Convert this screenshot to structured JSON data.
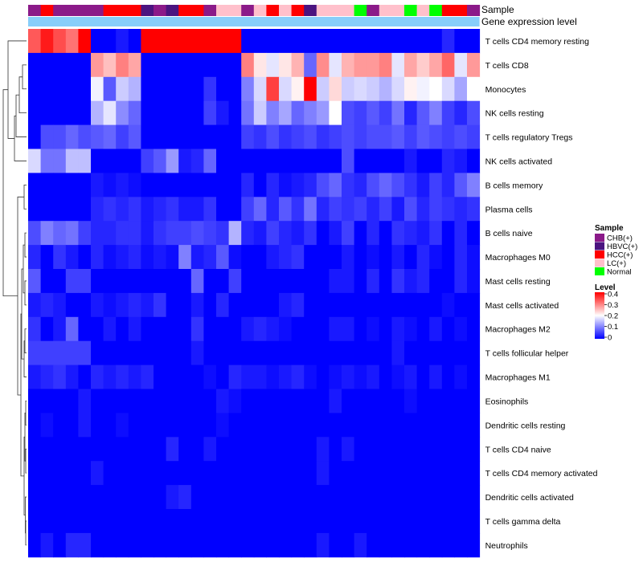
{
  "chart_data": {
    "type": "heatmap",
    "title": "",
    "annotation_titles": {
      "sample": "Sample",
      "gene": "Gene expression level"
    },
    "sample_groups": [
      "CHB(+)",
      "HBVC(+)",
      "HCC(+)",
      "LC(+)",
      "Normal"
    ],
    "sample_colors": {
      "CHB(+)": "#8B1A89",
      "HBVC(+)": "#4B1480",
      "HCC(+)": "#FF0000",
      "LC(+)": "#FFC0CB",
      "Normal": "#00FF00"
    },
    "gene_level_color": "#87CEFA",
    "columns": [
      "CHB(+)",
      "HCC(+)",
      "CHB(+)",
      "CHB(+)",
      "CHB(+)",
      "CHB(+)",
      "HCC(+)",
      "HCC(+)",
      "HCC(+)",
      "HBVC(+)",
      "CHB(+)",
      "HBVC(+)",
      "HCC(+)",
      "HCC(+)",
      "CHB(+)",
      "LC(+)",
      "LC(+)",
      "CHB(+)",
      "LC(+)",
      "HCC(+)",
      "LC(+)",
      "HCC(+)",
      "HBVC(+)",
      "LC(+)",
      "LC(+)",
      "LC(+)",
      "Normal",
      "CHB(+)",
      "LC(+)",
      "LC(+)",
      "Normal",
      "LC(+)",
      "Normal",
      "HCC(+)",
      "HCC(+)",
      "CHB(+)"
    ],
    "rows": [
      "T cells CD4 memory resting",
      "T cells CD8",
      "Monocytes",
      "NK cells resting",
      "T cells regulatory  Tregs",
      "NK cells activated",
      "B cells memory",
      "Plasma cells",
      "B cells naive",
      "Macrophages M0",
      "Mast cells resting",
      "Mast cells activated",
      "Macrophages M2",
      "T cells follicular helper",
      "Macrophages M1",
      "Eosinophils",
      "Dendritic cells resting",
      "T cells CD4 naive",
      "T cells CD4 memory activated",
      "Dendritic cells activated",
      "T cells gamma delta",
      "Neutrophils"
    ],
    "values": [
      [
        0.33,
        0.38,
        0.34,
        0.31,
        0.4,
        0,
        0,
        0.02,
        0,
        0.4,
        0.4,
        0.4,
        0.4,
        0.4,
        0.4,
        0.4,
        0.4,
        0,
        0,
        0,
        0,
        0,
        0,
        0,
        0,
        0,
        0,
        0,
        0,
        0,
        0,
        0,
        0,
        0.03,
        0,
        0
      ],
      [
        0,
        0,
        0,
        0,
        0,
        0.28,
        0.25,
        0.3,
        0.27,
        0,
        0,
        0,
        0,
        0,
        0,
        0,
        0,
        0.3,
        0.22,
        0.18,
        0.22,
        0.26,
        0.08,
        0.29,
        0.18,
        0.26,
        0.28,
        0.28,
        0.3,
        0.18,
        0.27,
        0.24,
        0.27,
        0.32,
        0.18,
        0.28
      ],
      [
        0,
        0,
        0,
        0,
        0,
        0.19,
        0.07,
        0.16,
        0.14,
        0,
        0,
        0,
        0,
        0,
        0.04,
        0,
        0,
        0.1,
        0.17,
        0.35,
        0.17,
        0.21,
        0.4,
        0.16,
        0.23,
        0.16,
        0.17,
        0.16,
        0.14,
        0.17,
        0.21,
        0.19,
        0.2,
        0.17,
        0.13,
        0.2
      ],
      [
        0,
        0,
        0,
        0,
        0,
        0.14,
        0.18,
        0.11,
        0.08,
        0,
        0,
        0,
        0,
        0,
        0.05,
        0.02,
        0,
        0.09,
        0.16,
        0.1,
        0.13,
        0.08,
        0.1,
        0.12,
        0.2,
        0.06,
        0.05,
        0.07,
        0.05,
        0.09,
        0.03,
        0.07,
        0.1,
        0.05,
        0.03,
        0.06
      ],
      [
        0,
        0.06,
        0.06,
        0.08,
        0.06,
        0.07,
        0.08,
        0.05,
        0.07,
        0,
        0,
        0,
        0,
        0,
        0,
        0,
        0,
        0.05,
        0.04,
        0.06,
        0.04,
        0.05,
        0.06,
        0.04,
        0.05,
        0.06,
        0.05,
        0.06,
        0.06,
        0.07,
        0.05,
        0.07,
        0.06,
        0.05,
        0.06,
        0.05
      ],
      [
        0.17,
        0.09,
        0.09,
        0.15,
        0.15,
        0,
        0,
        0,
        0,
        0.05,
        0.07,
        0.12,
        0.02,
        0.03,
        0.08,
        0,
        0,
        0,
        0,
        0,
        0,
        0,
        0,
        0,
        0,
        0.06,
        0,
        0,
        0,
        0,
        0.02,
        0,
        0,
        0.03,
        0.02,
        0
      ],
      [
        0,
        0,
        0,
        0,
        0,
        0.02,
        0.01,
        0.02,
        0.01,
        0,
        0,
        0,
        0,
        0,
        0,
        0,
        0,
        0.03,
        0,
        0.03,
        0.01,
        0.02,
        0.03,
        0.06,
        0.08,
        0.04,
        0.03,
        0.06,
        0.08,
        0.06,
        0.04,
        0.02,
        0.05,
        0.03,
        0.07,
        0.1
      ],
      [
        0,
        0,
        0,
        0,
        0,
        0.03,
        0.04,
        0.03,
        0.04,
        0.02,
        0.03,
        0.04,
        0.02,
        0.02,
        0.04,
        0,
        0,
        0.05,
        0.08,
        0.03,
        0.07,
        0.04,
        0.09,
        0.03,
        0.05,
        0.04,
        0.05,
        0.03,
        0.05,
        0.02,
        0.06,
        0.03,
        0.05,
        0.04,
        0.03,
        0.04
      ],
      [
        0.06,
        0.1,
        0.08,
        0.09,
        0.05,
        0.03,
        0.03,
        0.04,
        0.04,
        0.02,
        0.04,
        0.05,
        0.05,
        0.06,
        0.05,
        0.04,
        0.14,
        0.03,
        0.02,
        0.05,
        0.03,
        0.02,
        0.04,
        0,
        0.02,
        0.05,
        0,
        0.03,
        0,
        0.04,
        0.03,
        0.02,
        0.04,
        0,
        0.03,
        0
      ],
      [
        0.03,
        0,
        0.04,
        0.02,
        0,
        0.03,
        0.01,
        0.02,
        0.03,
        0.01,
        0.02,
        0.01,
        0.1,
        0.02,
        0.03,
        0.07,
        0.01,
        0,
        0,
        0.02,
        0.03,
        0.04,
        0,
        0,
        0,
        0.02,
        0,
        0.01,
        0,
        0.02,
        0,
        0.03,
        0.01,
        0,
        0.03,
        0.01
      ],
      [
        0.07,
        0,
        0,
        0.05,
        0.05,
        0,
        0,
        0,
        0,
        0,
        0,
        0,
        0,
        0.08,
        0,
        0,
        0.05,
        0,
        0,
        0,
        0,
        0,
        0,
        0,
        0.02,
        0.02,
        0,
        0.03,
        0,
        0.04,
        0.02,
        0.03,
        0,
        0,
        0.03,
        0.01
      ],
      [
        0.02,
        0.03,
        0.02,
        0,
        0,
        0.02,
        0.01,
        0.02,
        0.03,
        0.02,
        0.04,
        0,
        0,
        0.02,
        0,
        0.03,
        0,
        0,
        0,
        0,
        0.02,
        0.03,
        0,
        0,
        0,
        0,
        0,
        0,
        0,
        0,
        0,
        0,
        0,
        0.01,
        0,
        0
      ],
      [
        0.04,
        0,
        0.02,
        0.08,
        0,
        0,
        0.02,
        0,
        0.02,
        0,
        0,
        0,
        0,
        0.04,
        0,
        0,
        0,
        0.02,
        0.03,
        0.02,
        0.01,
        0,
        0,
        0,
        0.02,
        0.02,
        0,
        0.01,
        0,
        0.02,
        0.01,
        0,
        0.02,
        0,
        0.01,
        0
      ],
      [
        0.05,
        0.05,
        0.05,
        0.05,
        0.05,
        0,
        0,
        0,
        0,
        0,
        0,
        0,
        0,
        0.02,
        0,
        0,
        0,
        0,
        0,
        0,
        0,
        0,
        0,
        0,
        0,
        0,
        0,
        0,
        0,
        0.02,
        0,
        0,
        0,
        0,
        0,
        0
      ],
      [
        0.02,
        0.03,
        0.04,
        0.02,
        0,
        0.03,
        0.02,
        0.03,
        0.02,
        0.03,
        0,
        0,
        0,
        0,
        0.01,
        0,
        0.03,
        0.02,
        0.02,
        0.01,
        0.02,
        0.03,
        0.01,
        0,
        0.01,
        0.02,
        0.01,
        0.02,
        0,
        0.01,
        0.02,
        0,
        0.02,
        0,
        0.01,
        0
      ],
      [
        0,
        0,
        0,
        0,
        0.02,
        0,
        0,
        0,
        0,
        0,
        0,
        0,
        0,
        0,
        0,
        0.02,
        0.01,
        0,
        0,
        0,
        0,
        0,
        0,
        0,
        0.02,
        0,
        0,
        0,
        0,
        0,
        0.01,
        0,
        0,
        0,
        0,
        0
      ],
      [
        0,
        0.01,
        0,
        0,
        0.02,
        0,
        0,
        0.01,
        0,
        0,
        0,
        0,
        0,
        0,
        0,
        0.01,
        0,
        0,
        0,
        0,
        0,
        0,
        0,
        0,
        0,
        0,
        0,
        0,
        0,
        0,
        0,
        0,
        0,
        0,
        0,
        0
      ],
      [
        0,
        0,
        0,
        0,
        0,
        0,
        0,
        0,
        0,
        0,
        0,
        0.03,
        0,
        0,
        0.02,
        0,
        0,
        0,
        0,
        0,
        0,
        0,
        0,
        0.02,
        0,
        0.02,
        0,
        0,
        0,
        0,
        0,
        0,
        0,
        0,
        0,
        0
      ],
      [
        0,
        0,
        0,
        0,
        0,
        0.02,
        0,
        0,
        0,
        0,
        0,
        0,
        0,
        0,
        0,
        0,
        0,
        0,
        0,
        0,
        0,
        0,
        0,
        0.02,
        0,
        0,
        0,
        0,
        0,
        0,
        0,
        0,
        0,
        0,
        0,
        0
      ],
      [
        0,
        0,
        0,
        0,
        0,
        0,
        0,
        0,
        0,
        0,
        0,
        0.02,
        0.03,
        0,
        0,
        0,
        0,
        0,
        0,
        0,
        0,
        0,
        0,
        0,
        0,
        0,
        0,
        0,
        0,
        0,
        0,
        0,
        0,
        0,
        0,
        0
      ],
      [
        0,
        0,
        0,
        0,
        0,
        0,
        0,
        0,
        0,
        0,
        0,
        0,
        0,
        0,
        0,
        0,
        0,
        0,
        0,
        0,
        0,
        0,
        0,
        0,
        0,
        0,
        0,
        0,
        0,
        0,
        0,
        0,
        0,
        0,
        0,
        0
      ],
      [
        0,
        0.02,
        0,
        0.03,
        0.03,
        0,
        0,
        0,
        0,
        0,
        0,
        0,
        0,
        0,
        0,
        0,
        0,
        0,
        0,
        0,
        0,
        0,
        0,
        0.02,
        0,
        0,
        0.02,
        0,
        0,
        0,
        0,
        0,
        0,
        0,
        0,
        0
      ]
    ],
    "value_range": [
      0,
      0.4
    ],
    "legend": {
      "sample_title": "Sample",
      "level_title": "Level",
      "level_ticks": [
        "0.4",
        "0.3",
        "0.2",
        "0.1",
        "0"
      ],
      "level_tick_values": [
        0.4,
        0.3,
        0.2,
        0.1,
        0
      ]
    },
    "color_scale": {
      "low": "#0000FF",
      "mid": "#FFFFFF",
      "high": "#FF0000"
    },
    "dendrogram": "rows",
    "grid": false,
    "legend_position": "right"
  }
}
